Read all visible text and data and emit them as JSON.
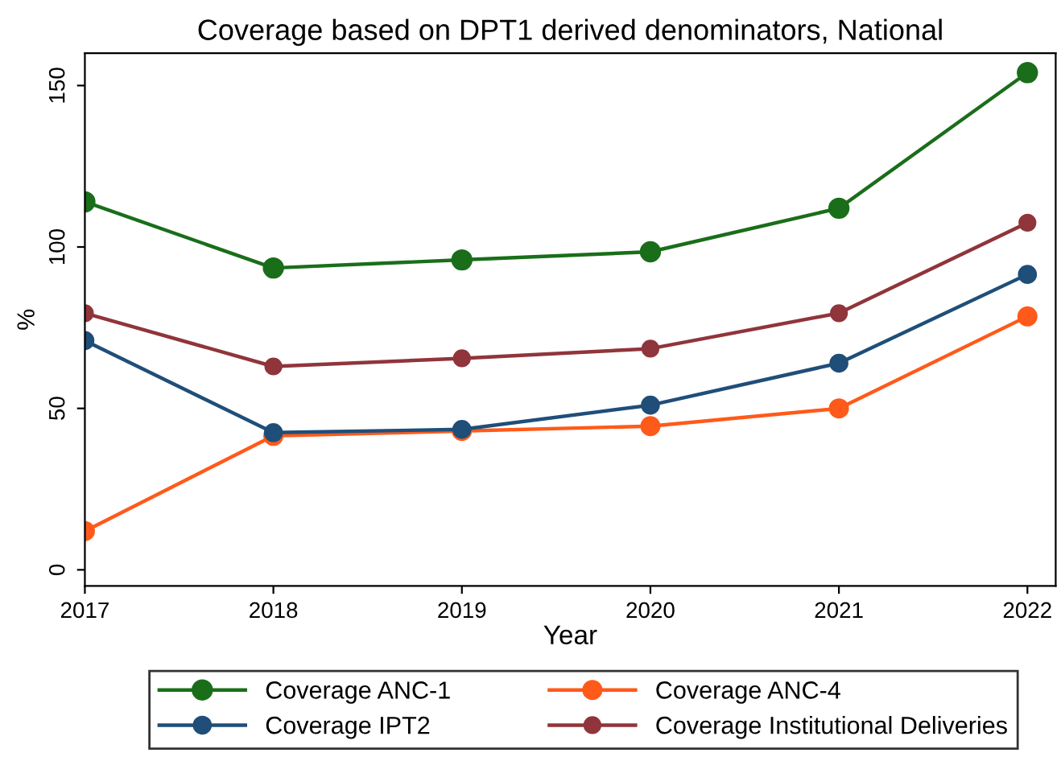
{
  "chart_data": {
    "type": "line",
    "title": "Coverage based on DPT1 derived denominators, National",
    "xlabel": "Year",
    "ylabel": "%",
    "x": [
      2017,
      2018,
      2019,
      2020,
      2021,
      2022
    ],
    "series": [
      {
        "name": "Coverage ANC-1",
        "color": "#1a6e1a",
        "values": [
          114,
          93.5,
          96,
          98.5,
          112,
          154
        ]
      },
      {
        "name": "Coverage ANC-4",
        "color": "#ff5a1a",
        "values": [
          12,
          41.5,
          43,
          44.5,
          50,
          78.5
        ]
      },
      {
        "name": "Coverage IPT2",
        "color": "#1f4e79",
        "values": [
          71,
          42.5,
          43.5,
          51,
          64,
          91.5
        ]
      },
      {
        "name": "Coverage Institutional Deliveries",
        "color": "#90353b",
        "values": [
          79.5,
          63,
          65.5,
          68.5,
          79.5,
          107.5
        ]
      }
    ],
    "xlim": [
      2017,
      2022.15
    ],
    "ylim": [
      -5,
      160
    ],
    "xticks": [
      2017,
      2018,
      2019,
      2020,
      2021,
      2022
    ],
    "yticks": [
      0,
      50,
      100,
      150
    ],
    "grid": false,
    "legend": "bottom",
    "marker": "circle",
    "line_style": "solid"
  }
}
